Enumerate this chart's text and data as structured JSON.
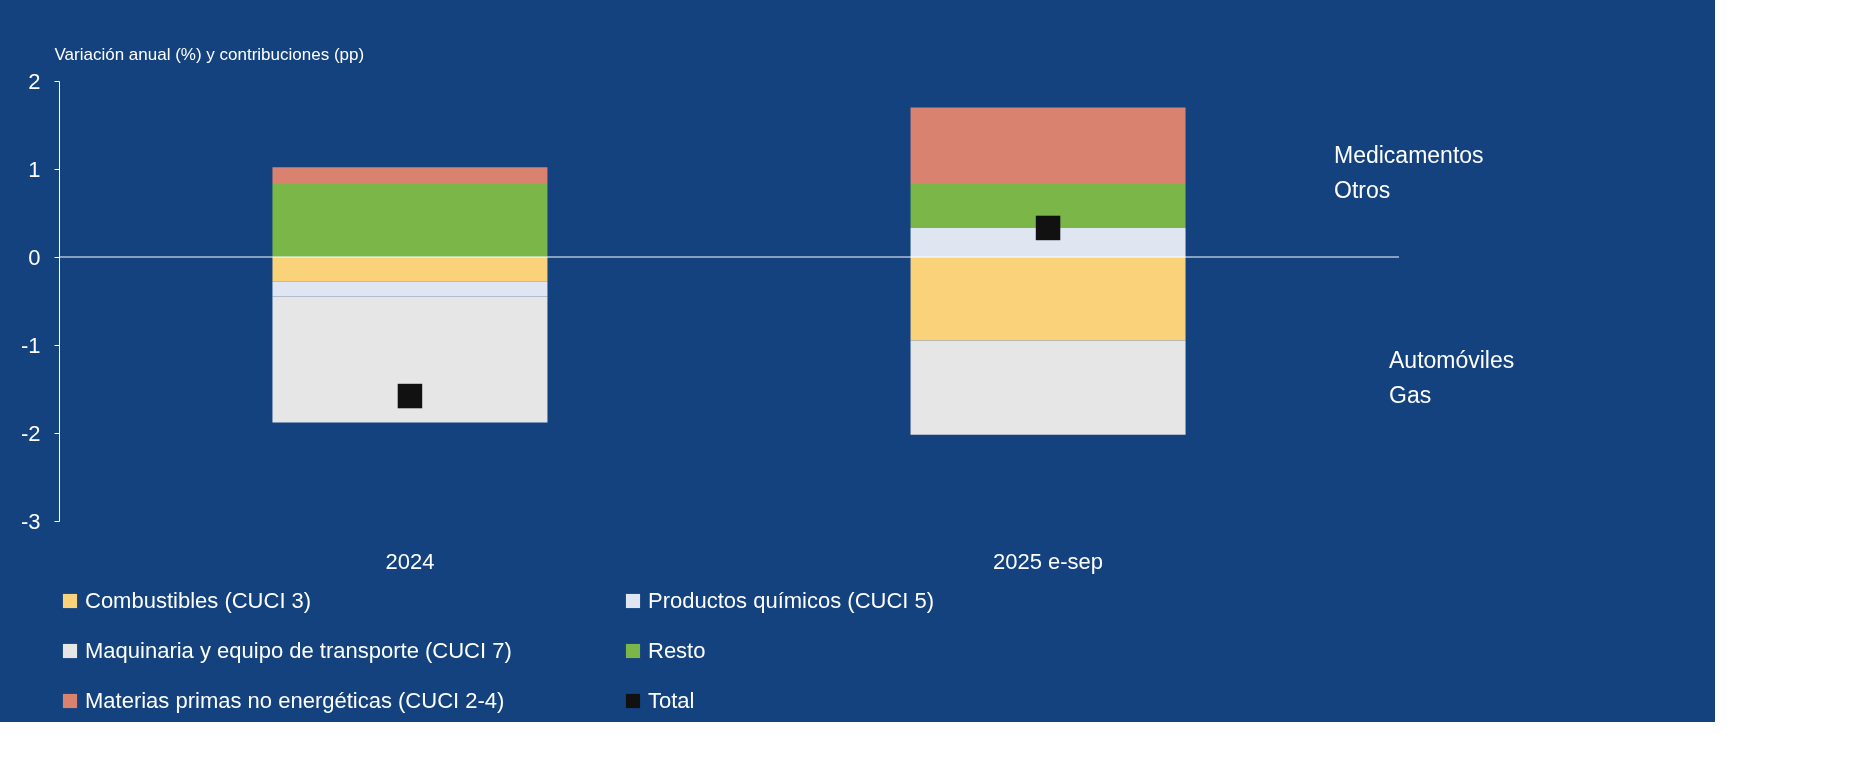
{
  "chart_data": {
    "type": "bar",
    "stacked": true,
    "ylabel": "Variación anual (%) y contribuciones (pp)",
    "categories": [
      "2024",
      "2025 e-sep"
    ],
    "series": [
      {
        "name": "Combustibles (CUCI 3)",
        "color": "#f9d27a",
        "values": [
          -0.28,
          -0.95
        ]
      },
      {
        "name": "Productos químicos (CUCI 5)",
        "color": "#dfe6f2",
        "values": [
          -0.17,
          0.33
        ]
      },
      {
        "name": "Maquinaria y equipo de transporte (CUCI 7)",
        "color": "#e6e6e6",
        "values": [
          -1.43,
          -1.07
        ]
      },
      {
        "name": "Resto",
        "color": "#7ab648",
        "values": [
          0.83,
          0.5
        ]
      },
      {
        "name": "Materias primas no energéticas (CUCI 2-4)",
        "color": "#d9826f",
        "values": [
          0.19,
          0.87
        ]
      },
      {
        "name": "Total",
        "color": "#111111",
        "type": "scatter",
        "values": [
          -1.58,
          0.33
        ]
      }
    ],
    "ylim": [
      -3,
      2
    ],
    "yticks": [
      -3,
      -2,
      -1,
      0,
      1,
      2
    ],
    "ref_lines": [
      {
        "axis": "y",
        "value": 0,
        "color": "#ffffff"
      }
    ],
    "legend": "bottom",
    "annotations": [
      "Medicamentos",
      "Otros",
      "Automóviles",
      "Gas"
    ]
  }
}
